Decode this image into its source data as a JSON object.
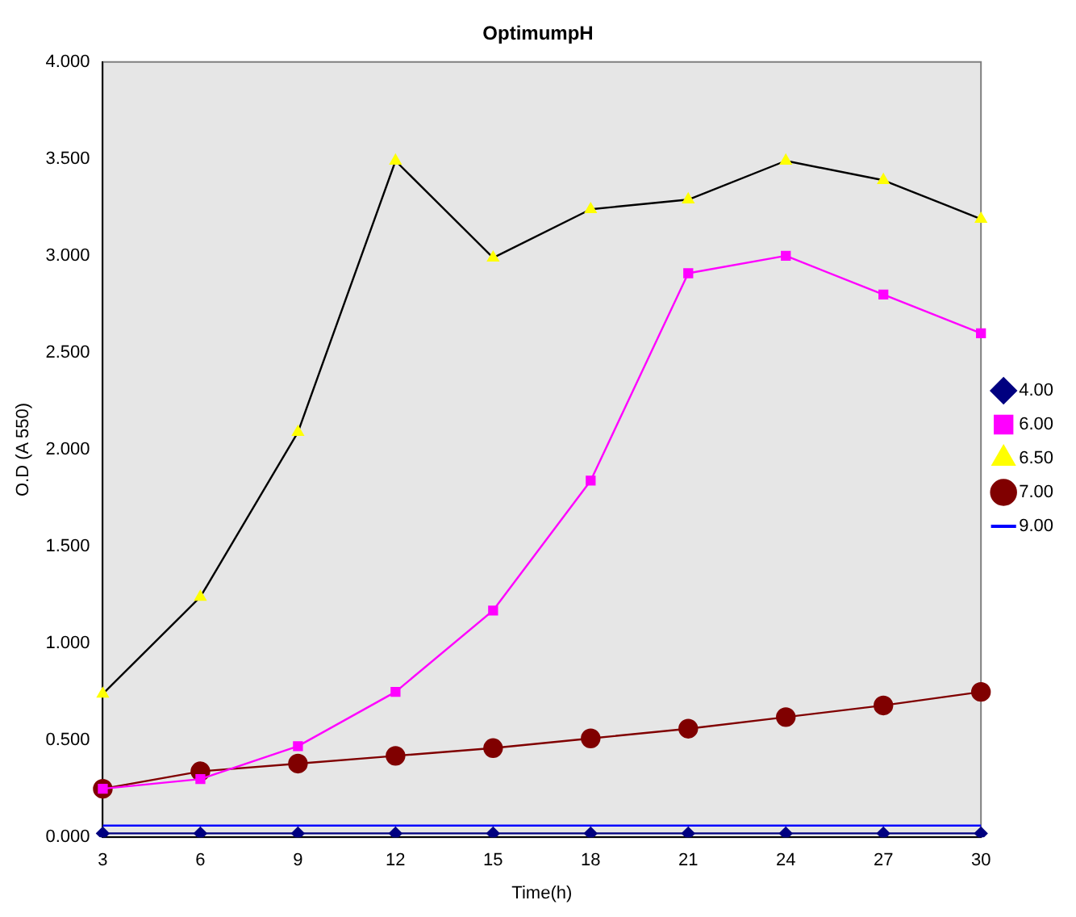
{
  "chart_data": {
    "type": "line",
    "title": "OptimumpH",
    "xlabel": "Time(h)",
    "ylabel": "O.D (A 550)",
    "categories": [
      "3",
      "6",
      "9",
      "12",
      "15",
      "18",
      "21",
      "24",
      "27",
      "30"
    ],
    "series": [
      {
        "name": "4.00",
        "color": "#000080",
        "marker": "diamond",
        "values": [
          0.02,
          0.02,
          0.02,
          0.02,
          0.02,
          0.02,
          0.02,
          0.02,
          0.02,
          0.02
        ]
      },
      {
        "name": "6.00",
        "color": "#ff00ff",
        "marker": "square",
        "values": [
          0.25,
          0.3,
          0.47,
          0.75,
          1.17,
          1.84,
          2.91,
          3.0,
          2.8,
          2.6
        ]
      },
      {
        "name": "6.50",
        "color": "#000000",
        "colors": [
          "#ffff00",
          "#ffff00",
          "#ffff00",
          "#ffff00",
          "#ffff00",
          "#ffff00",
          "#ffff00",
          "#ffff00",
          "#ffff00",
          "#ffff00"
        ],
        "marker": "triangle",
        "values": [
          0.74,
          1.24,
          2.09,
          3.49,
          2.99,
          3.24,
          3.29,
          3.49,
          3.39,
          3.19
        ]
      },
      {
        "name": "7.00",
        "color": "#800000",
        "marker": "circle",
        "values": [
          0.25,
          0.34,
          0.38,
          0.42,
          0.46,
          0.51,
          0.56,
          0.62,
          0.68,
          0.75
        ]
      },
      {
        "name": "9.00",
        "color": "#0000ff",
        "marker": "none",
        "values": [
          0.06,
          0.06,
          0.06,
          0.06,
          0.06,
          0.06,
          0.06,
          0.06,
          0.06,
          0.06
        ]
      }
    ],
    "ylim": [
      0,
      4
    ],
    "yticks": [
      {
        "value": 0,
        "label": "0.000"
      },
      {
        "value": 0.5,
        "label": "0.500"
      },
      {
        "value": 1,
        "label": "1.000"
      },
      {
        "value": 1.5,
        "label": "1.500"
      },
      {
        "value": 2,
        "label": "2.000"
      },
      {
        "value": 2.5,
        "label": "2.500"
      },
      {
        "value": 3,
        "label": "3.000"
      },
      {
        "value": 3.5,
        "label": "3.500"
      },
      {
        "value": 4,
        "label": "4.000"
      }
    ],
    "grid": false,
    "legend": "right"
  }
}
